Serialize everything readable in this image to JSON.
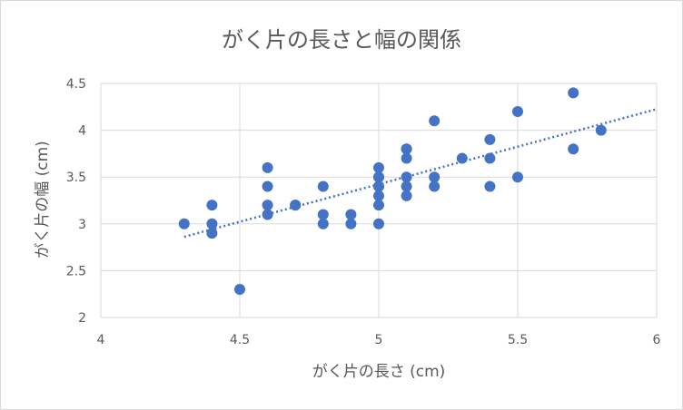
{
  "chart_data": {
    "type": "scatter",
    "title": "がく片の長さと幅の関係",
    "xlabel": "がく片の長さ (cm)",
    "ylabel": "がく片の幅 (cm)",
    "xlim": [
      4,
      6
    ],
    "ylim": [
      2,
      4.5
    ],
    "xticks": [
      "4",
      "4.5",
      "5",
      "5.5",
      "6"
    ],
    "yticks": [
      "2",
      "2.5",
      "3",
      "3.5",
      "4",
      "4.5"
    ],
    "grid": true,
    "legend": "none",
    "color": "#4472c4",
    "series": [
      {
        "x": [
          4.3,
          4.4,
          4.4,
          4.4,
          4.5,
          4.6,
          4.6,
          4.6,
          4.6,
          4.7,
          4.7,
          4.8,
          4.8,
          4.8,
          4.9,
          4.9,
          5.0,
          5.0,
          5.0,
          5.0,
          5.0,
          5.0,
          5.0,
          5.0,
          5.1,
          5.1,
          5.1,
          5.1,
          5.1,
          5.1,
          5.2,
          5.2,
          5.2,
          5.3,
          5.4,
          5.4,
          5.4,
          5.5,
          5.5,
          5.7,
          5.7,
          5.8
        ],
        "y": [
          3.0,
          3.2,
          3.0,
          2.9,
          2.3,
          3.6,
          3.4,
          3.2,
          3.1,
          3.2,
          3.2,
          3.4,
          3.1,
          3.0,
          3.1,
          3.0,
          3.6,
          3.5,
          3.4,
          3.4,
          3.3,
          3.2,
          3.0,
          3.5,
          3.8,
          3.7,
          3.5,
          3.4,
          3.3,
          3.8,
          4.1,
          3.5,
          3.4,
          3.7,
          3.9,
          3.7,
          3.4,
          4.2,
          3.5,
          4.4,
          3.8,
          4.0
        ]
      }
    ],
    "trendline": {
      "type": "linear",
      "style": "dotted",
      "x_range": [
        4.3,
        6.0
      ]
    }
  }
}
